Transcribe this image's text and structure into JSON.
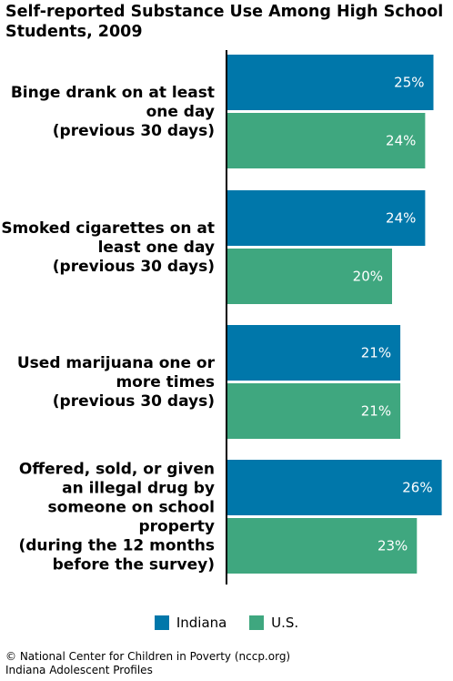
{
  "title": "Self-reported Substance Use Among High School Students, 2009",
  "chart_data": {
    "type": "bar",
    "orientation": "horizontal",
    "categories": [
      [
        "Binge drank on at least",
        "one day",
        "(previous 30 days)"
      ],
      [
        "Smoked cigarettes on at",
        "least one day",
        "(previous 30 days)"
      ],
      [
        "Used marijuana one or",
        "more times",
        "(previous 30 days)"
      ],
      [
        "Offered, sold, or given",
        "an illegal drug by",
        "someone on school",
        "property",
        "(during the 12 months",
        "before the survey)"
      ]
    ],
    "series": [
      {
        "name": "Indiana",
        "color": "#0077aa",
        "values": [
          25,
          24,
          21,
          26
        ],
        "labels": [
          "25%",
          "24%",
          "21%",
          "26%"
        ]
      },
      {
        "name": "U.S.",
        "color": "#3fa77f",
        "values": [
          24,
          20,
          21,
          23
        ],
        "labels": [
          "24%",
          "20%",
          "21%",
          "23%"
        ]
      }
    ],
    "legend_position": "bottom",
    "grid": false
  },
  "legend": {
    "indiana": "Indiana",
    "us": "U.S."
  },
  "footer": {
    "line1": "© National Center for Children in Poverty (nccp.org)",
    "line2": "Indiana Adolescent Profiles"
  }
}
